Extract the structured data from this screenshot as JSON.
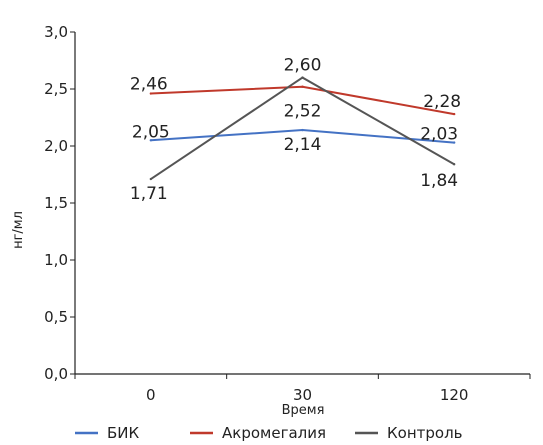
{
  "chart_data": {
    "type": "line",
    "categories": [
      "0",
      "30",
      "120"
    ],
    "xlabel": "Время",
    "ylabel": "нг/мл",
    "ylim": [
      0,
      3.0
    ],
    "yticks": [
      "0,0",
      "0,5",
      "1,0",
      "1,5",
      "2,0",
      "2,5",
      "3,0"
    ],
    "grid": false,
    "legend_position": "bottom",
    "series": [
      {
        "name": "БИК",
        "color": "#4472C4",
        "values": [
          2.05,
          2.14,
          2.03
        ],
        "labels": [
          "2,05",
          "2,14",
          "2,03"
        ]
      },
      {
        "name": "Акромегалия",
        "color": "#C0392B",
        "values": [
          2.46,
          2.52,
          2.28
        ],
        "labels": [
          "2,46",
          "2,52",
          "2,28"
        ]
      },
      {
        "name": "Контроль",
        "color": "#555555",
        "values": [
          1.71,
          2.6,
          1.84
        ],
        "labels": [
          "1,71",
          "2,60",
          "1,84"
        ]
      }
    ]
  }
}
